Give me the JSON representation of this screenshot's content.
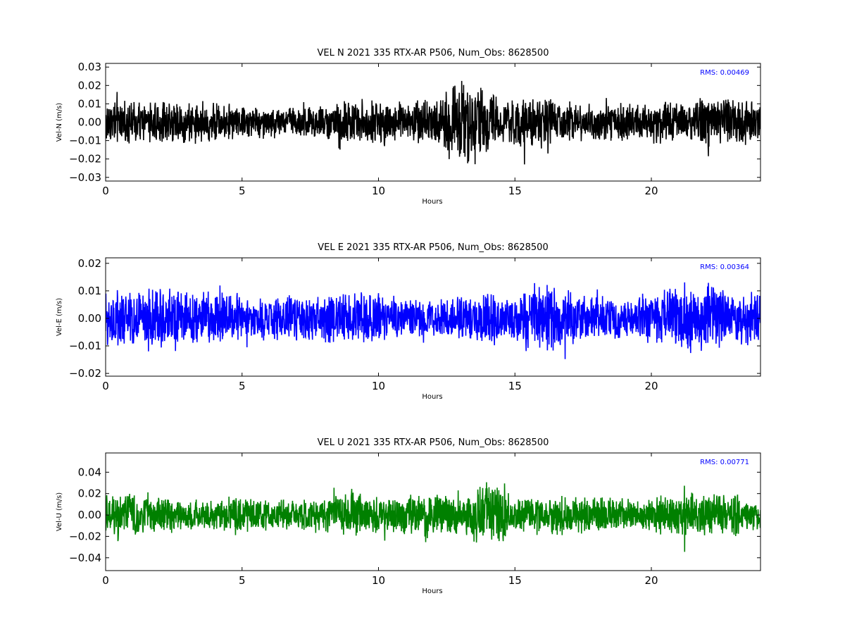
{
  "chart_data": [
    {
      "type": "line",
      "title": "VEL N 2021 335 RTX-AR  P506, Num_Obs: 8628500",
      "xlabel": "Hours",
      "ylabel": "Vel-N (m/s)",
      "xlim": [
        0,
        24
      ],
      "ylim": [
        -0.032,
        0.032
      ],
      "x_ticks": [
        0,
        5,
        10,
        15,
        20
      ],
      "x_tick_labels": [
        "0",
        "5",
        "10",
        "15",
        "20"
      ],
      "y_ticks": [
        -0.03,
        -0.02,
        -0.01,
        0.0,
        0.01,
        0.02,
        0.03
      ],
      "y_tick_labels": [
        "−0.03",
        "−0.02",
        "−0.01",
        "0.00",
        "0.01",
        "0.02",
        "0.03"
      ],
      "annotation": "RMS:  0.00469",
      "grid": false,
      "color": "#000000",
      "envelope": {
        "hours": [
          0,
          1,
          2,
          3,
          4,
          5,
          6,
          7,
          8,
          9,
          10,
          11,
          12,
          13,
          13.5,
          14,
          14.5,
          15,
          15.5,
          16,
          17,
          18,
          19,
          20,
          21,
          22,
          23,
          24
        ],
        "amplitude": [
          0.014,
          0.013,
          0.016,
          0.014,
          0.013,
          0.011,
          0.011,
          0.011,
          0.013,
          0.016,
          0.015,
          0.013,
          0.019,
          0.026,
          0.028,
          0.023,
          0.013,
          0.017,
          0.02,
          0.016,
          0.013,
          0.012,
          0.013,
          0.013,
          0.013,
          0.016,
          0.017,
          0.014
        ]
      }
    },
    {
      "type": "line",
      "title": "VEL E 2021 335 RTX-AR  P506, Num_Obs: 8628500",
      "xlabel": "Hours",
      "ylabel": "Vel-E (m/s)",
      "xlim": [
        0,
        24
      ],
      "ylim": [
        -0.021,
        0.022
      ],
      "x_ticks": [
        0,
        5,
        10,
        15,
        20
      ],
      "x_tick_labels": [
        "0",
        "5",
        "10",
        "15",
        "20"
      ],
      "y_ticks": [
        -0.02,
        -0.01,
        0.0,
        0.01,
        0.02
      ],
      "y_tick_labels": [
        "−0.02",
        "−0.01",
        "0.00",
        "0.01",
        "0.02"
      ],
      "annotation": "RMS:  0.00364",
      "grid": false,
      "color": "#0000ff",
      "envelope": {
        "hours": [
          0,
          1,
          2,
          3,
          4,
          5,
          6,
          7,
          8,
          9,
          10,
          11,
          12,
          13,
          14,
          15,
          15.5,
          16,
          17,
          18,
          19,
          20,
          21,
          21.5,
          22,
          23,
          24
        ],
        "amplitude": [
          0.012,
          0.013,
          0.014,
          0.013,
          0.012,
          0.01,
          0.009,
          0.01,
          0.011,
          0.012,
          0.012,
          0.009,
          0.008,
          0.01,
          0.012,
          0.01,
          0.016,
          0.017,
          0.012,
          0.01,
          0.009,
          0.011,
          0.015,
          0.018,
          0.016,
          0.012,
          0.012
        ]
      }
    },
    {
      "type": "line",
      "title": "VEL U 2021 335 RTX-AR  P506, Num_Obs: 8628500",
      "xlabel": "Hours",
      "ylabel": "Vel-U (m/s)",
      "xlim": [
        0,
        24
      ],
      "ylim": [
        -0.052,
        0.058
      ],
      "x_ticks": [
        0,
        5,
        10,
        15,
        20
      ],
      "x_tick_labels": [
        "0",
        "5",
        "10",
        "15",
        "20"
      ],
      "y_ticks": [
        -0.04,
        -0.02,
        0.0,
        0.02,
        0.04
      ],
      "y_tick_labels": [
        "−0.04",
        "−0.02",
        "0.00",
        "0.02",
        "0.04"
      ],
      "annotation": "RMS:  0.00771",
      "grid": false,
      "color": "#008000",
      "envelope": {
        "hours": [
          0,
          1,
          2,
          3,
          4,
          5,
          6,
          7,
          8,
          9,
          10,
          11,
          12,
          13,
          14,
          14.5,
          15,
          16,
          17,
          18,
          19,
          20,
          21,
          22,
          23,
          24
        ],
        "amplitude": [
          0.024,
          0.027,
          0.022,
          0.018,
          0.018,
          0.02,
          0.018,
          0.017,
          0.02,
          0.026,
          0.021,
          0.024,
          0.026,
          0.022,
          0.04,
          0.032,
          0.021,
          0.023,
          0.023,
          0.02,
          0.018,
          0.021,
          0.025,
          0.026,
          0.024,
          0.022
        ]
      }
    }
  ]
}
